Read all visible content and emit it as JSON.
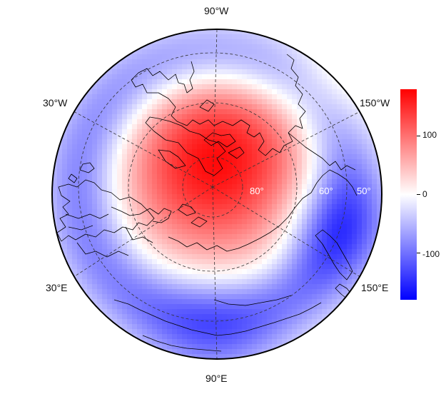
{
  "map": {
    "projection": "north-polar-stereographic",
    "longitude_labels": [
      {
        "id": "top",
        "text": "90°W"
      },
      {
        "id": "upper-left",
        "text": "30°W"
      },
      {
        "id": "upper-right",
        "text": "150°W"
      },
      {
        "id": "lower-left",
        "text": "30°E"
      },
      {
        "id": "lower-right",
        "text": "150°E"
      },
      {
        "id": "bottom",
        "text": "90°E"
      }
    ],
    "latitude_labels": [
      "80°",
      "60°",
      "50°"
    ],
    "graticule_style": "dashed",
    "coastlines": true,
    "colors": {
      "positive_max": "#ff0000",
      "zero": "#ffffff",
      "negative_max": "#0000ff",
      "outline": "#000000",
      "coastline": "#000000"
    }
  },
  "colorbar": {
    "ticks": [
      "100",
      "0",
      "-100"
    ],
    "range": [
      -180,
      180
    ],
    "colormap": "blue-white-red"
  }
}
